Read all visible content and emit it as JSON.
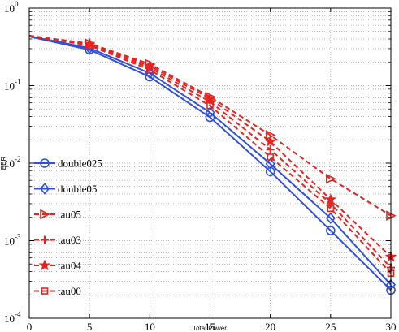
{
  "chart_data": {
    "type": "line",
    "title": "",
    "xlabel": "Total Power",
    "ylabel": "BER",
    "xscale": "linear",
    "yscale": "log",
    "xlim": [
      0,
      30
    ],
    "ylim": [
      0.0001,
      1
    ],
    "xticks": [
      0,
      5,
      10,
      15,
      20,
      25,
      30
    ],
    "xtick_labels": [
      "0",
      "5",
      "10",
      "15",
      "20",
      "25",
      "30"
    ],
    "yticks": [
      0.0001,
      0.001,
      0.01,
      0.1,
      1
    ],
    "ytick_labels": [
      {
        "base": "10",
        "exp": "-4"
      },
      {
        "base": "10",
        "exp": "-3"
      },
      {
        "base": "10",
        "exp": "-2"
      },
      {
        "base": "10",
        "exp": "-1"
      },
      {
        "base": "10",
        "exp": "0"
      }
    ],
    "grid": true,
    "legend_position": "left",
    "x": [
      0,
      5,
      10,
      15,
      20,
      25,
      30
    ],
    "series": [
      {
        "name": "double025",
        "color": "#3050d8",
        "linestyle": "solid",
        "marker": "circle",
        "values": [
          0.43,
          0.29,
          0.13,
          0.039,
          0.0078,
          0.00135,
          0.00023
        ]
      },
      {
        "name": "double05",
        "color": "#3050d8",
        "linestyle": "solid",
        "marker": "diamond",
        "values": [
          0.435,
          0.305,
          0.145,
          0.045,
          0.0098,
          0.00195,
          0.00027
        ]
      },
      {
        "name": "tau05",
        "color": "#e8231f",
        "linestyle": "dashed",
        "marker": "triangle-right",
        "values": [
          0.44,
          0.35,
          0.19,
          0.072,
          0.023,
          0.0063,
          0.0021
        ]
      },
      {
        "name": "tau03",
        "color": "#e8231f",
        "linestyle": "dashed",
        "marker": "plus",
        "values": [
          0.44,
          0.34,
          0.17,
          0.062,
          0.015,
          0.003,
          0.00045
        ]
      },
      {
        "name": "tau04",
        "color": "#e8231f",
        "linestyle": "dashed",
        "marker": "star",
        "values": [
          0.44,
          0.345,
          0.18,
          0.068,
          0.019,
          0.0034,
          0.00062
        ]
      },
      {
        "name": "tau00",
        "color": "#e8231f",
        "linestyle": "dashed",
        "marker": "square",
        "values": [
          0.44,
          0.33,
          0.16,
          0.055,
          0.012,
          0.0026,
          0.00038
        ]
      }
    ]
  }
}
